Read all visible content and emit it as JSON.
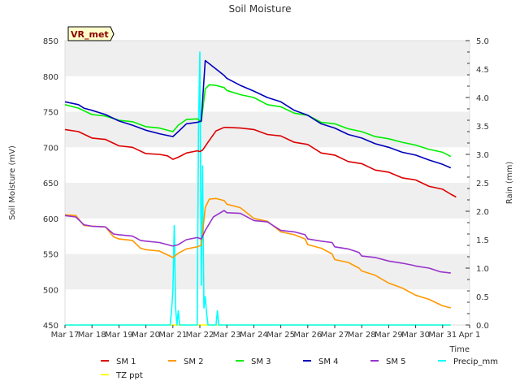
{
  "chart_data": {
    "type": "line",
    "title": "Soil Moisture",
    "badge": "VR_met",
    "xlabel": "Time",
    "ylabel": "Soil Moisture (mV)",
    "y2label": "Rain (mm)",
    "ylim": [
      450,
      850
    ],
    "y2lim": [
      0,
      5
    ],
    "yticks": [
      "450",
      "500",
      "550",
      "600",
      "650",
      "700",
      "750",
      "800",
      "850"
    ],
    "y2ticks": [
      "0.0",
      "0.5",
      "1.0",
      "1.5",
      "2.0",
      "2.5",
      "3.0",
      "3.5",
      "4.0",
      "4.5",
      "5.0"
    ],
    "xticks": [
      "Mar 17",
      "Mar 18",
      "Mar 19",
      "Mar 20",
      "Mar 21",
      "Mar 22",
      "Mar 23",
      "Mar 24",
      "Mar 25",
      "Mar 26",
      "Mar 27",
      "Mar 28",
      "Mar 29",
      "Mar 30",
      "Mar 31",
      "Apr 1"
    ],
    "grid": "horizontal bands",
    "legend_position": "bottom",
    "series": [
      {
        "name": "SM 1",
        "color": "#dd0000",
        "axis": "left",
        "points": [
          [
            0.0,
            725
          ],
          [
            0.5,
            722
          ],
          [
            1.0,
            713
          ],
          [
            1.5,
            711
          ],
          [
            2.0,
            702
          ],
          [
            2.5,
            700
          ],
          [
            3.0,
            691
          ],
          [
            3.5,
            690
          ],
          [
            3.8,
            688
          ],
          [
            4.0,
            683
          ],
          [
            4.2,
            686
          ],
          [
            4.5,
            692
          ],
          [
            4.9,
            695
          ],
          [
            5.0,
            694
          ],
          [
            5.1,
            696
          ],
          [
            5.3,
            707
          ],
          [
            5.6,
            723
          ],
          [
            5.9,
            728
          ],
          [
            6.0,
            728
          ],
          [
            6.5,
            727
          ],
          [
            7.0,
            725
          ],
          [
            7.5,
            718
          ],
          [
            8.0,
            716
          ],
          [
            8.5,
            707
          ],
          [
            9.0,
            704
          ],
          [
            9.5,
            692
          ],
          [
            10.0,
            689
          ],
          [
            10.5,
            680
          ],
          [
            11.0,
            677
          ],
          [
            11.5,
            668
          ],
          [
            12.0,
            665
          ],
          [
            12.5,
            657
          ],
          [
            13.0,
            654
          ],
          [
            13.5,
            645
          ],
          [
            14.0,
            641
          ],
          [
            14.3,
            634
          ],
          [
            14.5,
            630
          ]
        ]
      },
      {
        "name": "SM 2",
        "color": "#ff9900",
        "axis": "left",
        "points": [
          [
            0.0,
            605
          ],
          [
            0.4,
            604
          ],
          [
            0.7,
            590
          ],
          [
            1.0,
            589
          ],
          [
            1.5,
            588
          ],
          [
            1.8,
            574
          ],
          [
            2.0,
            571
          ],
          [
            2.5,
            569
          ],
          [
            2.8,
            558
          ],
          [
            3.0,
            556
          ],
          [
            3.5,
            554
          ],
          [
            4.0,
            545
          ],
          [
            4.2,
            551
          ],
          [
            4.5,
            557
          ],
          [
            4.9,
            560
          ],
          [
            5.05,
            562
          ],
          [
            5.2,
            615
          ],
          [
            5.35,
            627
          ],
          [
            5.6,
            628
          ],
          [
            5.9,
            625
          ],
          [
            6.0,
            620
          ],
          [
            6.5,
            615
          ],
          [
            7.0,
            600
          ],
          [
            7.5,
            596
          ],
          [
            8.0,
            581
          ],
          [
            8.5,
            577
          ],
          [
            8.9,
            571
          ],
          [
            9.0,
            563
          ],
          [
            9.5,
            558
          ],
          [
            9.9,
            550
          ],
          [
            10.0,
            542
          ],
          [
            10.5,
            538
          ],
          [
            10.9,
            530
          ],
          [
            11.0,
            526
          ],
          [
            11.5,
            520
          ],
          [
            12.0,
            509
          ],
          [
            12.5,
            502
          ],
          [
            13.0,
            492
          ],
          [
            13.5,
            486
          ],
          [
            14.0,
            477
          ],
          [
            14.3,
            474
          ]
        ]
      },
      {
        "name": "SM 3",
        "color": "#00ee00",
        "axis": "left",
        "points": [
          [
            0.0,
            760
          ],
          [
            0.5,
            755
          ],
          [
            1.0,
            746
          ],
          [
            1.5,
            744
          ],
          [
            2.0,
            738
          ],
          [
            2.5,
            736
          ],
          [
            3.0,
            729
          ],
          [
            3.5,
            727
          ],
          [
            4.0,
            722
          ],
          [
            4.2,
            731
          ],
          [
            4.5,
            739
          ],
          [
            4.9,
            740
          ],
          [
            5.05,
            736
          ],
          [
            5.2,
            782
          ],
          [
            5.35,
            788
          ],
          [
            5.6,
            787
          ],
          [
            5.9,
            784
          ],
          [
            6.0,
            780
          ],
          [
            6.5,
            774
          ],
          [
            7.0,
            770
          ],
          [
            7.5,
            760
          ],
          [
            8.0,
            757
          ],
          [
            8.5,
            748
          ],
          [
            9.0,
            745
          ],
          [
            9.5,
            735
          ],
          [
            10.0,
            733
          ],
          [
            10.5,
            726
          ],
          [
            11.0,
            722
          ],
          [
            11.5,
            715
          ],
          [
            12.0,
            712
          ],
          [
            12.5,
            707
          ],
          [
            13.0,
            703
          ],
          [
            13.5,
            697
          ],
          [
            14.0,
            693
          ],
          [
            14.3,
            687
          ]
        ]
      },
      {
        "name": "SM 4",
        "color": "#0000bb",
        "axis": "left",
        "points": [
          [
            0.0,
            764
          ],
          [
            0.5,
            760
          ],
          [
            0.7,
            755
          ],
          [
            1.0,
            752
          ],
          [
            1.5,
            746
          ],
          [
            2.0,
            737
          ],
          [
            2.5,
            731
          ],
          [
            3.0,
            724
          ],
          [
            3.5,
            719
          ],
          [
            4.0,
            715
          ],
          [
            4.2,
            722
          ],
          [
            4.5,
            733
          ],
          [
            4.9,
            735
          ],
          [
            5.05,
            737
          ],
          [
            5.2,
            822
          ],
          [
            5.5,
            813
          ],
          [
            5.9,
            801
          ],
          [
            6.0,
            797
          ],
          [
            6.5,
            787
          ],
          [
            7.0,
            779
          ],
          [
            7.5,
            770
          ],
          [
            8.0,
            764
          ],
          [
            8.5,
            752
          ],
          [
            9.0,
            745
          ],
          [
            9.5,
            733
          ],
          [
            10.0,
            727
          ],
          [
            10.5,
            718
          ],
          [
            11.0,
            713
          ],
          [
            11.5,
            705
          ],
          [
            12.0,
            700
          ],
          [
            12.5,
            693
          ],
          [
            13.0,
            689
          ],
          [
            13.5,
            682
          ],
          [
            14.0,
            676
          ],
          [
            14.3,
            671
          ]
        ]
      },
      {
        "name": "SM 5",
        "color": "#9933cc",
        "axis": "left",
        "points": [
          [
            0.0,
            604
          ],
          [
            0.4,
            602
          ],
          [
            0.7,
            591
          ],
          [
            1.0,
            589
          ],
          [
            1.5,
            588
          ],
          [
            1.8,
            578
          ],
          [
            2.0,
            577
          ],
          [
            2.5,
            575
          ],
          [
            2.8,
            569
          ],
          [
            3.0,
            568
          ],
          [
            3.5,
            566
          ],
          [
            4.0,
            561
          ],
          [
            4.2,
            563
          ],
          [
            4.5,
            570
          ],
          [
            4.9,
            573
          ],
          [
            5.05,
            571
          ],
          [
            5.2,
            583
          ],
          [
            5.5,
            602
          ],
          [
            5.9,
            611
          ],
          [
            6.0,
            608
          ],
          [
            6.5,
            607
          ],
          [
            7.0,
            597
          ],
          [
            7.5,
            595
          ],
          [
            8.0,
            583
          ],
          [
            8.5,
            581
          ],
          [
            8.9,
            577
          ],
          [
            9.0,
            571
          ],
          [
            9.5,
            568
          ],
          [
            9.9,
            566
          ],
          [
            10.0,
            560
          ],
          [
            10.5,
            557
          ],
          [
            10.9,
            552
          ],
          [
            11.0,
            547
          ],
          [
            11.5,
            545
          ],
          [
            12.0,
            540
          ],
          [
            12.5,
            537
          ],
          [
            12.9,
            534
          ],
          [
            13.0,
            533
          ],
          [
            13.5,
            530
          ],
          [
            13.9,
            525
          ],
          [
            14.3,
            523
          ]
        ]
      },
      {
        "name": "Precip_mm",
        "color": "#00ffff",
        "axis": "right",
        "points": [
          [
            0.0,
            0
          ],
          [
            3.9,
            0
          ],
          [
            3.95,
            0.25
          ],
          [
            4.0,
            0.6
          ],
          [
            4.05,
            1.75
          ],
          [
            4.1,
            0.3
          ],
          [
            4.15,
            0
          ],
          [
            4.2,
            0.25
          ],
          [
            4.25,
            0
          ],
          [
            4.9,
            0
          ],
          [
            4.95,
            3.4
          ],
          [
            5.0,
            4.8
          ],
          [
            5.05,
            0.7
          ],
          [
            5.1,
            2.8
          ],
          [
            5.15,
            0.3
          ],
          [
            5.2,
            0.5
          ],
          [
            5.25,
            0.2
          ],
          [
            5.3,
            0
          ],
          [
            5.6,
            0
          ],
          [
            5.65,
            0.25
          ],
          [
            5.7,
            0
          ],
          [
            14.3,
            0
          ]
        ]
      },
      {
        "name": "TZ ppt",
        "color": "#ffff00",
        "axis": "right",
        "points": [
          [
            0.0,
            0
          ],
          [
            14.3,
            0
          ]
        ]
      }
    ]
  }
}
